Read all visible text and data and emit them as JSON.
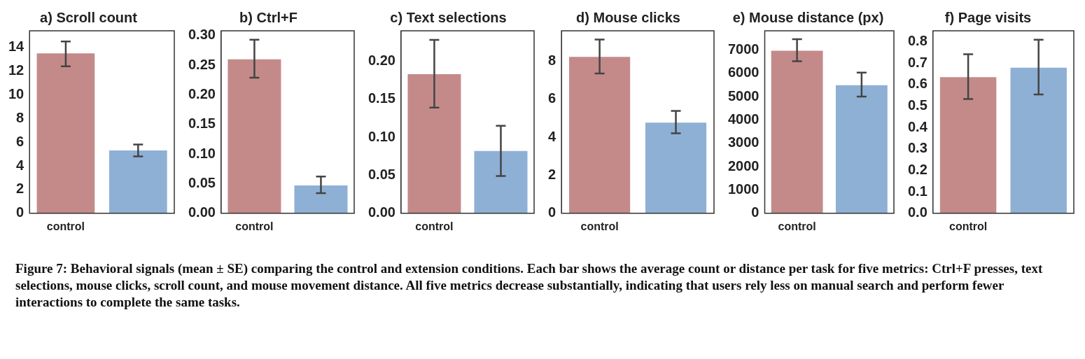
{
  "chart_data": [
    {
      "type": "bar",
      "title": "a) Scroll count",
      "categories": [
        "control",
        null
      ],
      "values": [
        13.5,
        5.3
      ],
      "errors": [
        [
          12.4,
          14.5
        ],
        [
          4.8,
          5.8
        ]
      ],
      "colors": [
        "#c48a8a",
        "#8eb0d5"
      ],
      "ylim": [
        0,
        15.4
      ],
      "yticks": [
        0,
        2,
        4,
        6,
        8,
        10,
        12,
        14
      ],
      "grid": false,
      "annotations": [
        "Figure 7: Behavioral signals (mean ± SE) comparing the control and extension conditions. Each bar shows the average count or distance per task for five metrics: Ctrl+F presses, text selections, mouse clicks, scroll count, and mouse movement distance. All five metrics decrease substantially, indicating that users rely less on manual search and perform fewer interactions to complete the same tasks."
      ]
    },
    {
      "type": "bar",
      "title": "b) Ctrl+F",
      "categories": [
        "control",
        null
      ],
      "values": [
        0.26,
        0.047
      ],
      "errors": [
        [
          0.229,
          0.293
        ],
        [
          0.034,
          0.062
        ]
      ],
      "colors": [
        "#c48a8a",
        "#8eb0d5"
      ],
      "ylim": [
        0,
        0.308
      ],
      "yticks": [
        {
          "value": 0,
          "label": "0.00"
        },
        {
          "value": 0.05,
          "label": "0.05"
        },
        {
          "value": 0.1,
          "label": "0.10"
        },
        {
          "value": 0.15,
          "label": "0.15"
        },
        {
          "value": 0.2,
          "label": "0.20"
        },
        {
          "value": 0.25,
          "label": "0.25"
        },
        {
          "value": 0.3,
          "label": "0.30"
        }
      ],
      "grid": false
    },
    {
      "type": "bar",
      "title": "c) Text selections",
      "categories": [
        "control",
        null
      ],
      "values": [
        0.183,
        0.082
      ],
      "errors": [
        [
          0.139,
          0.228
        ],
        [
          0.049,
          0.115
        ]
      ],
      "colors": [
        "#c48a8a",
        "#8eb0d5"
      ],
      "ylim": [
        0,
        0.24
      ],
      "yticks": [
        {
          "value": 0,
          "label": "0.00"
        },
        {
          "value": 0.05,
          "label": "0.05"
        },
        {
          "value": 0.1,
          "label": "0.10"
        },
        {
          "value": 0.15,
          "label": "0.15"
        },
        {
          "value": 0.2,
          "label": "0.20"
        }
      ],
      "grid": false
    },
    {
      "type": "bar",
      "title": "d) Mouse clicks",
      "categories": [
        "control",
        null
      ],
      "values": [
        8.22,
        4.76
      ],
      "errors": [
        [
          7.35,
          9.13
        ],
        [
          4.2,
          5.38
        ]
      ],
      "colors": [
        "#c48a8a",
        "#8eb0d5"
      ],
      "ylim": [
        0,
        9.59
      ],
      "yticks": [
        0,
        2,
        4,
        6,
        8
      ],
      "grid": false
    },
    {
      "type": "bar",
      "title": "e) Mouse distance (px)",
      "categories": [
        "control",
        null
      ],
      "values": [
        6966,
        5491
      ],
      "errors": [
        [
          6517,
          7457
        ],
        [
          5000,
          6026
        ]
      ],
      "colors": [
        "#c48a8a",
        "#8eb0d5"
      ],
      "ylim": [
        0,
        7820
      ],
      "yticks": [
        0,
        1000,
        2000,
        3000,
        4000,
        5000,
        6000,
        7000
      ],
      "grid": false
    },
    {
      "type": "bar",
      "title": "f) Page visits",
      "categories": [
        "control",
        null
      ],
      "values": [
        0.635,
        0.679
      ],
      "errors": [
        [
          0.533,
          0.742
        ],
        [
          0.554,
          0.809
        ]
      ],
      "colors": [
        "#c48a8a",
        "#8eb0d5"
      ],
      "ylim": [
        0,
        0.851
      ],
      "yticks": [
        {
          "value": 0,
          "label": "0.0"
        },
        0.1,
        0.2,
        0.3,
        0.4,
        0.5,
        0.6,
        0.7,
        0.8
      ],
      "grid": false
    }
  ]
}
